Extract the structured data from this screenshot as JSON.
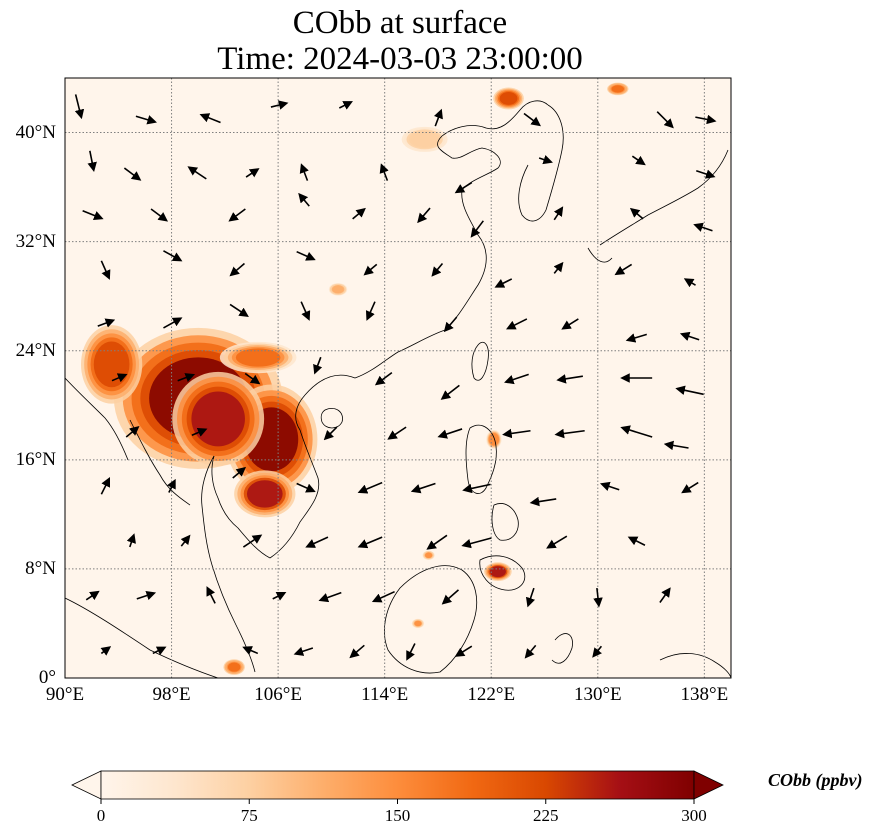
{
  "title": {
    "line1": "CObb at surface",
    "line2": "Time: 2024-03-03 23:00:00"
  },
  "map": {
    "lon_range": [
      90,
      140
    ],
    "lat_range": [
      0,
      44
    ],
    "x_ticks": [
      {
        "value": 90,
        "label": "90°E"
      },
      {
        "value": 98,
        "label": "98°E"
      },
      {
        "value": 106,
        "label": "106°E"
      },
      {
        "value": 114,
        "label": "114°E"
      },
      {
        "value": 122,
        "label": "122°E"
      },
      {
        "value": 130,
        "label": "130°E"
      },
      {
        "value": 138,
        "label": "138°E"
      }
    ],
    "y_ticks": [
      {
        "value": 0,
        "label": "0°"
      },
      {
        "value": 8,
        "label": "8°N"
      },
      {
        "value": 16,
        "label": "16°N"
      },
      {
        "value": 24,
        "label": "24°N"
      },
      {
        "value": 32,
        "label": "32°N"
      },
      {
        "value": 40,
        "label": "40°N"
      }
    ],
    "gridlines": true,
    "colors": {
      "background": "#fff5eb",
      "high": "#7f0000",
      "coast": "#000000",
      "grid": "#7f7f7f"
    },
    "hotspots": [
      {
        "name": "myanmar-indochina",
        "lon": 100.0,
        "lat": 20.5,
        "rlon": 5.5,
        "rlat": 4.5,
        "value": 300
      },
      {
        "name": "laos-vietnam",
        "lon": 105.5,
        "lat": 17.5,
        "rlon": 3.0,
        "rlat": 3.5,
        "value": 300
      },
      {
        "name": "thailand-east",
        "lon": 101.5,
        "lat": 19.0,
        "rlon": 3.0,
        "rlat": 3.0,
        "value": 280
      },
      {
        "name": "cambodia",
        "lon": 105.0,
        "lat": 13.5,
        "rlon": 2.0,
        "rlat": 1.5,
        "value": 260
      },
      {
        "name": "myanmar-west",
        "lon": 93.5,
        "lat": 23.0,
        "rlon": 2.0,
        "rlat": 2.5,
        "value": 240
      },
      {
        "name": "guangxi",
        "lon": 104.5,
        "lat": 23.5,
        "rlon": 2.5,
        "rlat": 1.0,
        "value": 180
      },
      {
        "name": "luzon",
        "lon": 122.2,
        "lat": 17.5,
        "rlon": 0.5,
        "rlat": 0.6,
        "value": 170
      },
      {
        "name": "mindanao",
        "lon": 122.5,
        "lat": 7.8,
        "rlon": 0.9,
        "rlat": 0.6,
        "value": 260
      },
      {
        "name": "northeast-china",
        "lon": 123.3,
        "lat": 42.5,
        "rlon": 1.0,
        "rlat": 0.7,
        "value": 240
      },
      {
        "name": "vladivostok",
        "lon": 131.5,
        "lat": 43.2,
        "rlon": 0.7,
        "rlat": 0.4,
        "value": 200
      },
      {
        "name": "hunan",
        "lon": 110.5,
        "lat": 28.5,
        "rlon": 0.6,
        "rlat": 0.4,
        "value": 120
      },
      {
        "name": "malay-south",
        "lon": 102.7,
        "lat": 0.8,
        "rlon": 0.7,
        "rlat": 0.5,
        "value": 200
      },
      {
        "name": "beijing",
        "lon": 117.0,
        "lat": 39.5,
        "rlon": 1.5,
        "rlat": 0.8,
        "value": 90
      },
      {
        "name": "kalimantan",
        "lon": 116.5,
        "lat": 4.0,
        "rlon": 0.4,
        "rlat": 0.3,
        "value": 140
      },
      {
        "name": "borneo-north",
        "lon": 117.3,
        "lat": 9.0,
        "rlon": 0.4,
        "rlat": 0.3,
        "value": 140
      }
    ],
    "wind_vectors": [
      [
        91,
        42,
        0.3,
        -1.2
      ],
      [
        96,
        41,
        1.0,
        -0.3
      ],
      [
        101,
        41,
        -1.0,
        0.4
      ],
      [
        106,
        42,
        0.8,
        0.2
      ],
      [
        111,
        42,
        0.6,
        0.3
      ],
      [
        118,
        41,
        0.3,
        0.8
      ],
      [
        125,
        41,
        0.8,
        -0.6
      ],
      [
        135,
        41,
        0.8,
        -0.8
      ],
      [
        138,
        41,
        1.0,
        -0.2
      ],
      [
        92,
        38,
        0.2,
        -1.0
      ],
      [
        95,
        37,
        0.8,
        -0.6
      ],
      [
        100,
        37,
        -0.9,
        0.6
      ],
      [
        104,
        37,
        0.6,
        0.4
      ],
      [
        108,
        37,
        -0.3,
        0.8
      ],
      [
        114,
        37,
        -0.3,
        0.8
      ],
      [
        120,
        36,
        -0.8,
        -0.5
      ],
      [
        126,
        38,
        0.6,
        -0.2
      ],
      [
        133,
        38,
        0.6,
        -0.4
      ],
      [
        138,
        37,
        0.9,
        -0.3
      ],
      [
        92,
        34,
        1.0,
        -0.4
      ],
      [
        97,
        34,
        0.8,
        -0.6
      ],
      [
        103,
        34,
        -0.8,
        -0.6
      ],
      [
        108,
        35,
        -0.5,
        0.6
      ],
      [
        112,
        34,
        0.6,
        0.5
      ],
      [
        117,
        34,
        -0.6,
        -0.7
      ],
      [
        121,
        33,
        -0.6,
        -0.8
      ],
      [
        127,
        34,
        0.4,
        0.6
      ],
      [
        133,
        34,
        -0.6,
        0.5
      ],
      [
        138,
        33,
        -0.9,
        0.3
      ],
      [
        93,
        30,
        0.4,
        -0.9
      ],
      [
        98,
        31,
        0.9,
        -0.5
      ],
      [
        103,
        30,
        -0.7,
        -0.6
      ],
      [
        108,
        31,
        0.9,
        -0.4
      ],
      [
        113,
        30,
        -0.6,
        -0.5
      ],
      [
        118,
        30,
        -0.5,
        -0.6
      ],
      [
        123,
        29,
        -0.8,
        -0.4
      ],
      [
        127,
        30,
        0.4,
        0.5
      ],
      [
        132,
        30,
        -0.8,
        -0.5
      ],
      [
        137,
        29,
        -0.5,
        0.3
      ],
      [
        93,
        26,
        0.8,
        0.3
      ],
      [
        98,
        26,
        0.9,
        0.5
      ],
      [
        103,
        27,
        0.9,
        -0.6
      ],
      [
        108,
        27,
        0.4,
        -0.9
      ],
      [
        113,
        27,
        -0.4,
        -0.9
      ],
      [
        119,
        26,
        -0.6,
        -0.7
      ],
      [
        124,
        26,
        -1.0,
        -0.5
      ],
      [
        128,
        26,
        -0.8,
        -0.5
      ],
      [
        133,
        25,
        -1.0,
        -0.3
      ],
      [
        137,
        25,
        -0.9,
        0.3
      ],
      [
        94,
        22,
        0.7,
        0.3
      ],
      [
        99,
        22,
        0.8,
        0.3
      ],
      [
        104,
        22,
        0.7,
        -0.5
      ],
      [
        109,
        23,
        -0.3,
        -0.8
      ],
      [
        114,
        22,
        -0.8,
        -0.6
      ],
      [
        119,
        21,
        -0.9,
        -0.7
      ],
      [
        124,
        22,
        -1.2,
        -0.4
      ],
      [
        128,
        22,
        -1.3,
        -0.2
      ],
      [
        133,
        22,
        -1.6,
        0.0
      ],
      [
        137,
        21,
        -1.4,
        0.3
      ],
      [
        95,
        18,
        0.6,
        0.5
      ],
      [
        100,
        18,
        0.7,
        0.3
      ],
      [
        110,
        18,
        -0.6,
        -0.6
      ],
      [
        115,
        18,
        -0.9,
        -0.6
      ],
      [
        119,
        18,
        -1.2,
        -0.4
      ],
      [
        124,
        18,
        -1.4,
        -0.2
      ],
      [
        128,
        18,
        -1.5,
        -0.2
      ],
      [
        133,
        18,
        -1.6,
        0.5
      ],
      [
        136,
        17,
        -1.2,
        0.2
      ],
      [
        93,
        14,
        0.4,
        0.8
      ],
      [
        98,
        14,
        0.3,
        0.6
      ],
      [
        103,
        15,
        0.6,
        0.5
      ],
      [
        108,
        14,
        0.9,
        -0.4
      ],
      [
        113,
        14,
        -1.2,
        -0.5
      ],
      [
        117,
        14,
        -1.2,
        -0.4
      ],
      [
        121,
        14,
        -1.4,
        -0.3
      ],
      [
        126,
        13,
        -1.3,
        -0.2
      ],
      [
        131,
        14,
        -0.9,
        0.3
      ],
      [
        137,
        14,
        -0.8,
        -0.5
      ],
      [
        95,
        10,
        0.2,
        0.6
      ],
      [
        99,
        10,
        0.4,
        0.5
      ],
      [
        104,
        10,
        0.9,
        0.6
      ],
      [
        109,
        10,
        -1.1,
        -0.5
      ],
      [
        113,
        10,
        -1.2,
        -0.5
      ],
      [
        118,
        10,
        -1.0,
        -0.7
      ],
      [
        121,
        10,
        -1.5,
        -0.4
      ],
      [
        127,
        10,
        -1.0,
        -0.6
      ],
      [
        133,
        10,
        -0.8,
        0.4
      ],
      [
        92,
        6,
        0.6,
        0.4
      ],
      [
        96,
        6,
        0.9,
        0.3
      ],
      [
        101,
        6,
        -0.4,
        0.8
      ],
      [
        106,
        6,
        0.6,
        0.3
      ],
      [
        110,
        6,
        -1.1,
        -0.4
      ],
      [
        114,
        6,
        -1.1,
        -0.5
      ],
      [
        119,
        6,
        -0.8,
        -0.7
      ],
      [
        125,
        6,
        -0.3,
        -0.9
      ],
      [
        130,
        6,
        0.1,
        -0.9
      ],
      [
        135,
        6,
        0.5,
        0.7
      ],
      [
        93,
        2,
        0.4,
        0.3
      ],
      [
        97,
        2,
        0.6,
        0.3
      ],
      [
        104,
        2,
        -0.7,
        0.3
      ],
      [
        108,
        2,
        -0.9,
        -0.3
      ],
      [
        112,
        2,
        -0.7,
        -0.6
      ],
      [
        116,
        2,
        -0.4,
        -0.8
      ],
      [
        120,
        2,
        -0.8,
        -0.5
      ],
      [
        125,
        2,
        -0.5,
        -0.6
      ],
      [
        130,
        2,
        -0.4,
        -0.5
      ]
    ]
  },
  "colorbar": {
    "label": "CObb (ppbv)",
    "min": 0,
    "max": 300,
    "ticks": [
      "0",
      "75",
      "150",
      "225",
      "300"
    ],
    "tick_values": [
      0,
      75,
      150,
      225,
      300
    ],
    "extend": "both",
    "stops": [
      "#fff5eb",
      "#fee6ce",
      "#fdd0a2",
      "#fdae6b",
      "#fd8d3c",
      "#f16913",
      "#d94801",
      "#a50f15",
      "#7f0000"
    ]
  }
}
